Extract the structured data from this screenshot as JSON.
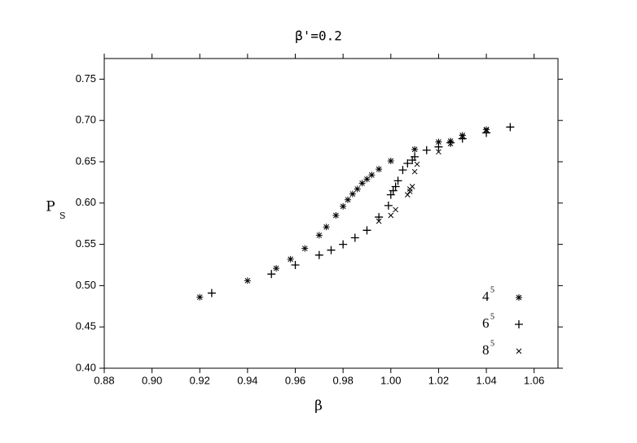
{
  "chart_data": {
    "type": "scatter",
    "title": "β'=0.2",
    "x_label": "β",
    "y_label": "P",
    "y_label_subscript": "S",
    "xlim": [
      0.88,
      1.07
    ],
    "ylim": [
      0.4,
      0.775
    ],
    "xticks": [
      0.88,
      {
        "value": 0.9,
        "label": "0.90"
      },
      0.92,
      0.94,
      0.96,
      0.98,
      {
        "value": 1.0,
        "label": "1.00"
      },
      1.02,
      1.04,
      1.06
    ],
    "yticks": [
      {
        "value": 0.4,
        "label": "0.40"
      },
      0.45,
      {
        "value": 0.5,
        "label": "0.50"
      },
      0.55,
      {
        "value": 0.6,
        "label": "0.60"
      },
      0.65,
      {
        "value": 0.7,
        "label": "0.70"
      },
      0.75
    ],
    "grid": false,
    "legend_position": "bottom-right",
    "series": [
      {
        "name": "4",
        "name_superscript": "5",
        "marker": "asterisk",
        "color": "#000000",
        "x": [
          0.92,
          0.94,
          0.952,
          0.958,
          0.964,
          0.97,
          0.973,
          0.977,
          0.98,
          0.982,
          0.984,
          0.986,
          0.988,
          0.99,
          0.992,
          0.995,
          1.0,
          1.01,
          1.02,
          1.025,
          1.03,
          1.04
        ],
        "values": [
          0.486,
          0.506,
          0.521,
          0.532,
          0.545,
          0.561,
          0.571,
          0.585,
          0.596,
          0.604,
          0.611,
          0.617,
          0.624,
          0.629,
          0.634,
          0.641,
          0.651,
          0.665,
          0.674,
          0.675,
          0.682,
          0.689
        ]
      },
      {
        "name": "6",
        "name_superscript": "5",
        "marker": "plus",
        "color": "#000000",
        "x": [
          0.925,
          0.95,
          0.96,
          0.97,
          0.975,
          0.98,
          0.985,
          0.99,
          0.995,
          0.999,
          1.0,
          1.001,
          1.002,
          1.003,
          1.005,
          1.007,
          1.009,
          1.01,
          1.015,
          1.02,
          1.025,
          1.03,
          1.04,
          1.05
        ],
        "values": [
          0.491,
          0.514,
          0.525,
          0.537,
          0.543,
          0.55,
          0.558,
          0.567,
          0.583,
          0.597,
          0.61,
          0.615,
          0.62,
          0.627,
          0.64,
          0.648,
          0.652,
          0.656,
          0.664,
          0.668,
          0.673,
          0.678,
          0.685,
          0.692
        ]
      },
      {
        "name": "8",
        "name_superscript": "5",
        "marker": "x",
        "color": "#000000",
        "x": [
          0.995,
          1.0,
          1.002,
          1.007,
          1.008,
          1.008,
          1.009,
          1.01,
          1.011,
          1.02,
          1.025,
          1.03,
          1.04
        ],
        "values": [
          0.578,
          0.585,
          0.592,
          0.61,
          0.614,
          0.617,
          0.62,
          0.638,
          0.647,
          0.662,
          0.672,
          0.68,
          0.688
        ]
      }
    ]
  }
}
